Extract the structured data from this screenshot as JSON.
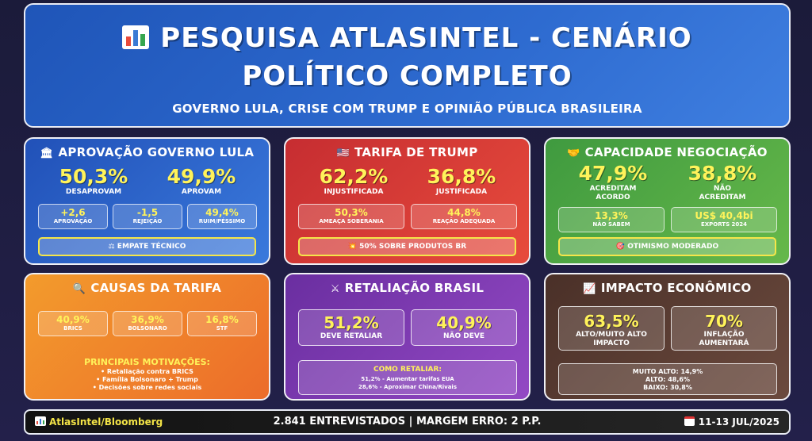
{
  "header": {
    "title_line1": "PESQUISA ATLASINTEL - CENÁRIO",
    "title_line2": "POLÍTICO COMPLETO",
    "subtitle": "GOVERNO LULA, CRISE COM TRUMP E OPINIÃO PÚBLICA BRASILEIRA",
    "icon": "bar-chart-icon"
  },
  "cards": {
    "aprovacao": {
      "title": "APROVAÇÃO GOVERNO LULA",
      "icon": "government-building-icon",
      "big": [
        {
          "value": "50,3%",
          "label": "DESAPROVAM"
        },
        {
          "value": "49,9%",
          "label": "APROVAM"
        }
      ],
      "mini": [
        {
          "value": "+2,6",
          "label": "APROVAÇÃO"
        },
        {
          "value": "-1,5",
          "label": "REJEIÇÃO"
        },
        {
          "value": "49,4%",
          "label": "RUIM/PÉSSIMO"
        }
      ],
      "banner": "EMPATE TÉCNICO",
      "banner_icon": "scale-icon"
    },
    "tarifa": {
      "title": "TARIFA DE TRUMP",
      "icon": "us-flag-icon",
      "big": [
        {
          "value": "62,2%",
          "label": "INJUSTIFICADA"
        },
        {
          "value": "36,8%",
          "label": "JUSTIFICADA"
        }
      ],
      "mini": [
        {
          "value": "50,3%",
          "label": "AMEAÇA SOBERANIA"
        },
        {
          "value": "44,8%",
          "label": "REAÇÃO ADEQUADA"
        }
      ],
      "banner": "50% SOBRE PRODUTOS BR",
      "banner_icon": "explosion-icon"
    },
    "negociacao": {
      "title": "CAPACIDADE NEGOCIAÇÃO",
      "icon": "handshake-icon",
      "big": [
        {
          "value": "47,9%",
          "label1": "ACREDITAM",
          "label2": "ACORDO"
        },
        {
          "value": "38,8%",
          "label1": "NÃO",
          "label2": "ACREDITAM"
        }
      ],
      "mini": [
        {
          "value": "13,3%",
          "label": "NÃO SABEM"
        },
        {
          "value": "US$ 40,4bi",
          "label": "EXPORTS 2024"
        }
      ],
      "banner": "OTIMISMO MODERADO",
      "banner_icon": "target-icon"
    },
    "causas": {
      "title": "CAUSAS DA TARIFA",
      "icon": "magnifier-icon",
      "mini": [
        {
          "value": "40,9%",
          "label": "BRICS"
        },
        {
          "value": "36,9%",
          "label": "BOLSONARO"
        },
        {
          "value": "16,8%",
          "label": "STF"
        }
      ],
      "list_title": "PRINCIPAIS MOTIVAÇÕES:",
      "list": [
        "• Retaliação contra BRICS",
        "• Família Bolsonaro + Trump",
        "• Decisões sobre redes sociais"
      ]
    },
    "retaliacao": {
      "title": "RETALIAÇÃO BRASIL",
      "icon": "crossed-swords-icon",
      "boxes": [
        {
          "value": "51,2%",
          "label": "DEVE RETALIAR"
        },
        {
          "value": "40,9%",
          "label": "NÃO DEVE"
        }
      ],
      "how_title": "COMO RETALIAR:",
      "how": [
        "51,2% - Aumentar tarifas EUA",
        "28,6% - Aproximar China/Rivais"
      ]
    },
    "impacto": {
      "title": "IMPACTO ECONÔMICO",
      "icon": "trending-chart-icon",
      "boxes": [
        {
          "value": "63,5%",
          "label1": "ALTO/MUITO ALTO",
          "label2": "IMPACTO"
        },
        {
          "value": "70%",
          "label1": "INFLAÇÃO",
          "label2": "AUMENTARÁ"
        }
      ],
      "detail": [
        "MUITO ALTO: 14,9%",
        "ALTO: 48,6%",
        "BAIXO: 30,8%"
      ]
    }
  },
  "footer": {
    "source": "AtlasIntel/Bloomberg",
    "center": "2.841 ENTREVISTADOS | MARGEM ERRO: 2 P.P.",
    "date": "11-13 JUL/2025"
  },
  "colors": {
    "highlight": "#fff35a",
    "blue": "#2e6bd0",
    "red": "#d83a36",
    "green": "#52a945",
    "orange": "#f07f2b",
    "purple": "#7d3bb2",
    "brown": "#5a3c32"
  }
}
